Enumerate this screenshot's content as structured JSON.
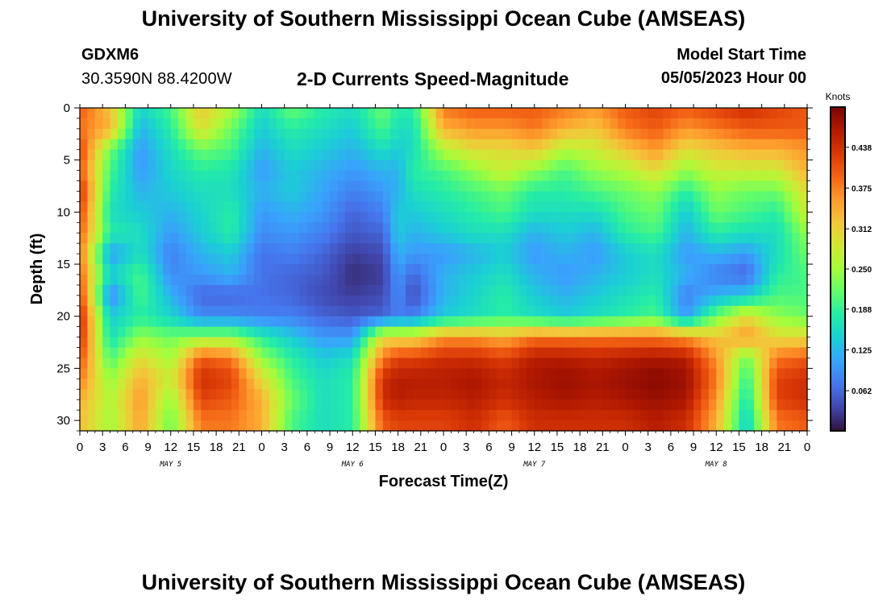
{
  "header": {
    "title": "University of Southern Mississippi Ocean Cube (AMSEAS)",
    "station": "GDXM6",
    "coords": "30.3590N  88.4200W",
    "subtitle": "2-D Currents Speed-Magnitude",
    "start_label": "Model Start Time",
    "start_value": "05/05/2023 Hour 00"
  },
  "footer": {
    "title": "University of Southern Mississippi Ocean Cube (AMSEAS)"
  },
  "chart_data": {
    "type": "heatmap",
    "xlabel": "Forecast Time(Z)",
    "ylabel": "Depth (ft)",
    "x_tick_labels": [
      "0",
      "3",
      "6",
      "9",
      "12",
      "15",
      "18",
      "21",
      "0",
      "3",
      "6",
      "9",
      "12",
      "15",
      "18",
      "21",
      "0",
      "3",
      "6",
      "9",
      "12",
      "15",
      "18",
      "21",
      "0",
      "3",
      "6",
      "9",
      "12",
      "15",
      "18",
      "21",
      "0"
    ],
    "x_range_hours": [
      0,
      96
    ],
    "day_labels": [
      {
        "label": "MAY 5",
        "hour": 12
      },
      {
        "label": "MAY 6",
        "hour": 36
      },
      {
        "label": "MAY 7",
        "hour": 60
      },
      {
        "label": "MAY 8",
        "hour": 84
      }
    ],
    "y_ticks": [
      0,
      5,
      10,
      15,
      20,
      25,
      30
    ],
    "y_range_ft": [
      0,
      31
    ],
    "y_inverted": true,
    "colorbar": {
      "unit": "Knots",
      "min": 0.0,
      "max": 0.5,
      "tick_labels": [
        "0.438",
        "0.375",
        "0.312",
        "0.250",
        "0.188",
        "0.125",
        "0.062"
      ],
      "tick_values": [
        0.438,
        0.375,
        0.312,
        0.25,
        0.188,
        0.125,
        0.062
      ],
      "colormap": [
        "#30123b",
        "#4145ab",
        "#4675ed",
        "#39a2fc",
        "#1bcfd4",
        "#24eca6",
        "#61fc6c",
        "#a4fc3b",
        "#d1e834",
        "#f3c63a",
        "#fe9b2d",
        "#f36315",
        "#d93806",
        "#b11901",
        "#7a0403"
      ]
    },
    "depth_levels_ft": [
      0,
      2,
      4,
      6,
      8,
      10,
      12,
      14,
      16,
      18,
      20,
      22,
      24,
      26,
      28,
      30
    ],
    "time_keys_hours": [
      0,
      4,
      8,
      12,
      16,
      20,
      24,
      28,
      32,
      36,
      40,
      42,
      44,
      48,
      52,
      56,
      60,
      64,
      68,
      72,
      76,
      80,
      84,
      88,
      92,
      96
    ],
    "speed_knots": [
      [
        0.4,
        0.38,
        0.42,
        0.4,
        0.44,
        0.42,
        0.4,
        0.38,
        0.4,
        0.42,
        0.45,
        0.44,
        0.41,
        0.38,
        0.34,
        0.33
      ],
      [
        0.32,
        0.34,
        0.22,
        0.2,
        0.18,
        0.16,
        0.18,
        0.1,
        0.15,
        0.08,
        0.14,
        0.16,
        0.2,
        0.24,
        0.26,
        0.25
      ],
      [
        0.15,
        0.12,
        0.1,
        0.1,
        0.12,
        0.14,
        0.16,
        0.16,
        0.2,
        0.2,
        0.18,
        0.24,
        0.3,
        0.34,
        0.36,
        0.35
      ],
      [
        0.2,
        0.18,
        0.16,
        0.15,
        0.14,
        0.12,
        0.1,
        0.08,
        0.09,
        0.12,
        0.15,
        0.22,
        0.25,
        0.28,
        0.24,
        0.22
      ],
      [
        0.32,
        0.3,
        0.22,
        0.18,
        0.16,
        0.15,
        0.14,
        0.12,
        0.1,
        0.06,
        0.09,
        0.24,
        0.4,
        0.44,
        0.42,
        0.38
      ],
      [
        0.26,
        0.22,
        0.2,
        0.17,
        0.16,
        0.18,
        0.18,
        0.14,
        0.12,
        0.06,
        0.09,
        0.24,
        0.38,
        0.42,
        0.4,
        0.38
      ],
      [
        0.16,
        0.14,
        0.12,
        0.1,
        0.12,
        0.1,
        0.09,
        0.07,
        0.07,
        0.07,
        0.08,
        0.18,
        0.24,
        0.3,
        0.34,
        0.34
      ],
      [
        0.22,
        0.18,
        0.16,
        0.14,
        0.14,
        0.12,
        0.1,
        0.08,
        0.06,
        0.06,
        0.08,
        0.14,
        0.18,
        0.2,
        0.22,
        0.2
      ],
      [
        0.18,
        0.16,
        0.14,
        0.12,
        0.11,
        0.1,
        0.08,
        0.06,
        0.05,
        0.04,
        0.06,
        0.1,
        0.14,
        0.16,
        0.16,
        0.16
      ],
      [
        0.16,
        0.14,
        0.12,
        0.1,
        0.08,
        0.06,
        0.05,
        0.03,
        0.02,
        0.03,
        0.05,
        0.1,
        0.16,
        0.18,
        0.18,
        0.18
      ],
      [
        0.22,
        0.2,
        0.16,
        0.12,
        0.1,
        0.08,
        0.06,
        0.04,
        0.03,
        0.04,
        0.06,
        0.3,
        0.38,
        0.44,
        0.44,
        0.4
      ],
      [
        0.18,
        0.16,
        0.14,
        0.12,
        0.12,
        0.14,
        0.14,
        0.12,
        0.1,
        0.09,
        0.08,
        0.3,
        0.42,
        0.46,
        0.46,
        0.42
      ],
      [
        0.18,
        0.16,
        0.16,
        0.18,
        0.16,
        0.14,
        0.12,
        0.1,
        0.06,
        0.04,
        0.08,
        0.3,
        0.42,
        0.46,
        0.45,
        0.42
      ],
      [
        0.38,
        0.34,
        0.26,
        0.2,
        0.18,
        0.16,
        0.14,
        0.1,
        0.12,
        0.12,
        0.14,
        0.36,
        0.44,
        0.46,
        0.45,
        0.42
      ],
      [
        0.4,
        0.36,
        0.3,
        0.24,
        0.2,
        0.18,
        0.16,
        0.12,
        0.14,
        0.15,
        0.16,
        0.36,
        0.44,
        0.47,
        0.46,
        0.44
      ],
      [
        0.4,
        0.36,
        0.3,
        0.28,
        0.22,
        0.2,
        0.16,
        0.14,
        0.16,
        0.18,
        0.18,
        0.34,
        0.42,
        0.45,
        0.44,
        0.4
      ],
      [
        0.4,
        0.38,
        0.32,
        0.24,
        0.18,
        0.16,
        0.12,
        0.1,
        0.12,
        0.14,
        0.16,
        0.38,
        0.46,
        0.47,
        0.46,
        0.44
      ],
      [
        0.38,
        0.34,
        0.26,
        0.2,
        0.18,
        0.16,
        0.14,
        0.12,
        0.1,
        0.12,
        0.14,
        0.38,
        0.46,
        0.48,
        0.47,
        0.44
      ],
      [
        0.36,
        0.32,
        0.28,
        0.24,
        0.2,
        0.16,
        0.12,
        0.1,
        0.12,
        0.14,
        0.16,
        0.38,
        0.45,
        0.47,
        0.46,
        0.44
      ],
      [
        0.4,
        0.38,
        0.32,
        0.26,
        0.22,
        0.2,
        0.18,
        0.14,
        0.14,
        0.16,
        0.18,
        0.38,
        0.46,
        0.48,
        0.47,
        0.44
      ],
      [
        0.42,
        0.4,
        0.36,
        0.3,
        0.24,
        0.22,
        0.2,
        0.16,
        0.16,
        0.18,
        0.2,
        0.38,
        0.47,
        0.49,
        0.48,
        0.46
      ],
      [
        0.4,
        0.36,
        0.3,
        0.24,
        0.18,
        0.14,
        0.12,
        0.1,
        0.12,
        0.08,
        0.1,
        0.36,
        0.46,
        0.48,
        0.47,
        0.44
      ],
      [
        0.42,
        0.38,
        0.32,
        0.28,
        0.24,
        0.22,
        0.18,
        0.12,
        0.08,
        0.12,
        0.22,
        0.32,
        0.36,
        0.38,
        0.36,
        0.34
      ],
      [
        0.44,
        0.4,
        0.34,
        0.28,
        0.22,
        0.2,
        0.16,
        0.1,
        0.06,
        0.14,
        0.3,
        0.36,
        0.22,
        0.18,
        0.16,
        0.14
      ],
      [
        0.42,
        0.4,
        0.34,
        0.28,
        0.22,
        0.18,
        0.16,
        0.16,
        0.18,
        0.2,
        0.24,
        0.3,
        0.38,
        0.42,
        0.42,
        0.38
      ],
      [
        0.4,
        0.4,
        0.36,
        0.34,
        0.3,
        0.28,
        0.24,
        0.22,
        0.2,
        0.2,
        0.22,
        0.3,
        0.4,
        0.44,
        0.44,
        0.4
      ]
    ]
  }
}
